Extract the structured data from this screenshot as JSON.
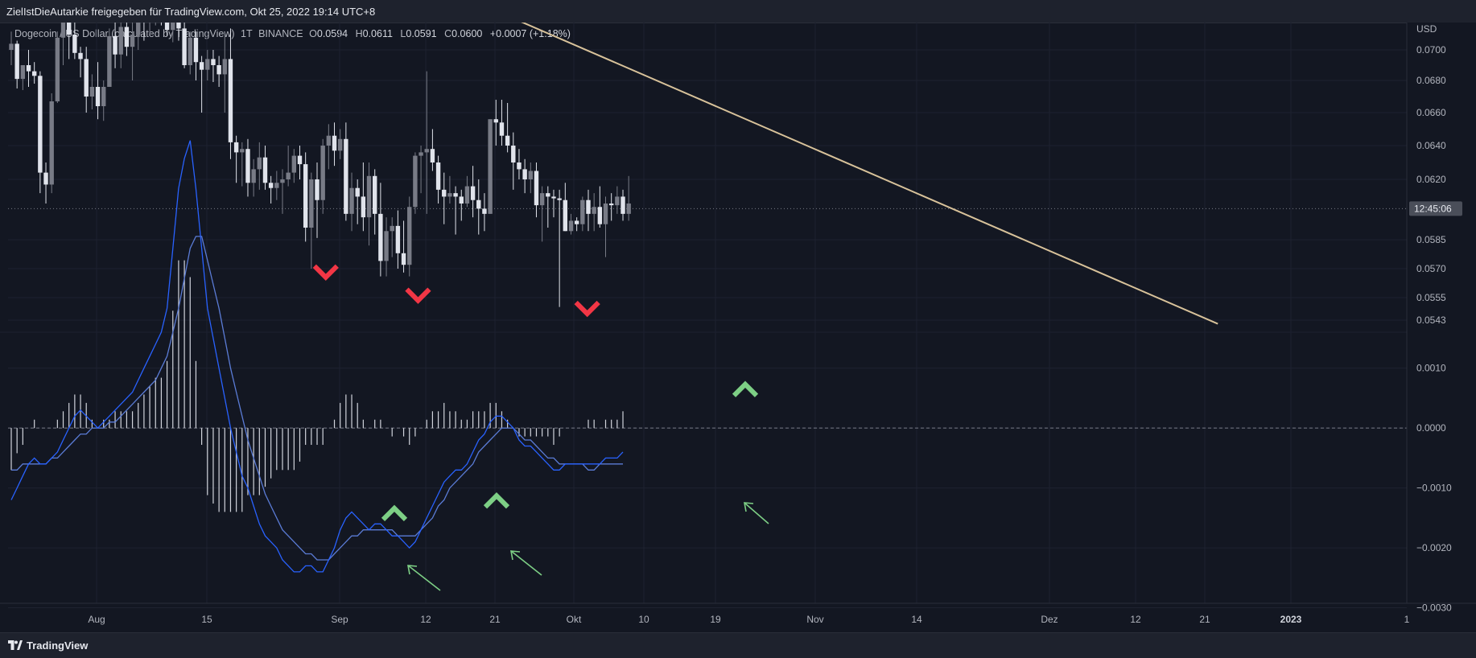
{
  "header": {
    "text": "ZielIstDieAutarkie freigegeben für TradingView.com, Okt 25, 2022 19:14 UTC+8"
  },
  "legend": {
    "symbol": "Dogecoin / US Dollar (calculated by TradingView)",
    "interval": "1T",
    "exchange": "BINANCE",
    "o": "0.0594",
    "h": "0.0611",
    "l": "0.0591",
    "c": "0.0600",
    "change": "+0.0007 (+1.18%)"
  },
  "footer": {
    "brand": "TradingView"
  },
  "colors": {
    "bg": "#131722",
    "panel": "#1e222d",
    "candle_up": "#787b86",
    "candle_down": "#e0e3eb",
    "macd": "#2962ff",
    "signal": "#5b7cd6",
    "hist": "#d1d4dc",
    "trendline": "#d8c29a",
    "sell_marker": "#f23645",
    "buy_marker": "#7dcf85",
    "arrow": "#7dcf85"
  },
  "icons": [
    "tradingview-logo-icon",
    "sell-marker-icon",
    "buy-marker-icon",
    "arrow-icon"
  ],
  "chart_data": [
    {
      "type": "candlestick",
      "title": "Dogecoin / US Dollar",
      "currency": "USD",
      "countdown": "12:45:06",
      "y_ticks": [
        "0.0700",
        "0.0680",
        "0.0660",
        "0.0640",
        "0.0620",
        "0.0585",
        "0.0570",
        "0.0555",
        "0.0543"
      ],
      "x_ticks": [
        "Aug",
        "15",
        "Sep",
        "12",
        "21",
        "Okt",
        "10",
        "19",
        "Nov",
        "14",
        "Dez",
        "12",
        "21",
        "2023",
        "1"
      ],
      "grid": true,
      "ohlc": [
        [
          0.07,
          0.0712,
          0.069,
          0.0704
        ],
        [
          0.0704,
          0.0706,
          0.0675,
          0.0681
        ],
        [
          0.0681,
          0.069,
          0.0674,
          0.069
        ],
        [
          0.069,
          0.07,
          0.0676,
          0.0686
        ],
        [
          0.0686,
          0.0692,
          0.0678,
          0.0683
        ],
        [
          0.0683,
          0.0686,
          0.0612,
          0.0624
        ],
        [
          0.0624,
          0.063,
          0.0606,
          0.0617
        ],
        [
          0.0617,
          0.0672,
          0.0612,
          0.0667
        ],
        [
          0.0667,
          0.0712,
          0.0666,
          0.0708
        ],
        [
          0.0708,
          0.0728,
          0.069,
          0.0718
        ],
        [
          0.0718,
          0.0728,
          0.0694,
          0.071
        ],
        [
          0.071,
          0.0724,
          0.0694,
          0.0698
        ],
        [
          0.0698,
          0.0702,
          0.0682,
          0.0694
        ],
        [
          0.0694,
          0.0702,
          0.066,
          0.067
        ],
        [
          0.067,
          0.0684,
          0.0662,
          0.0676
        ],
        [
          0.0676,
          0.0692,
          0.0656,
          0.0664
        ],
        [
          0.0664,
          0.068,
          0.0655,
          0.0676
        ],
        [
          0.0676,
          0.0714,
          0.0676,
          0.0709
        ],
        [
          0.0709,
          0.0718,
          0.0688,
          0.0697
        ],
        [
          0.0697,
          0.0722,
          0.0688,
          0.0715
        ],
        [
          0.0715,
          0.0728,
          0.0696,
          0.0702
        ],
        [
          0.0702,
          0.0718,
          0.068,
          0.071
        ],
        [
          0.071,
          0.0728,
          0.07,
          0.072
        ],
        [
          0.072,
          0.0728,
          0.0706,
          0.0718
        ],
        [
          0.0718,
          0.0732,
          0.071,
          0.0726
        ],
        [
          0.0726,
          0.0734,
          0.0716,
          0.073
        ],
        [
          0.073,
          0.0735,
          0.0716,
          0.0722
        ],
        [
          0.0722,
          0.073,
          0.0709,
          0.0713
        ],
        [
          0.0713,
          0.0725,
          0.0705,
          0.0718
        ],
        [
          0.0718,
          0.0724,
          0.0706,
          0.0714
        ],
        [
          0.0714,
          0.073,
          0.0688,
          0.069
        ],
        [
          0.069,
          0.0712,
          0.0684,
          0.0708
        ],
        [
          0.0708,
          0.0712,
          0.068,
          0.0692
        ],
        [
          0.0692,
          0.0696,
          0.066,
          0.0687
        ],
        [
          0.0687,
          0.07,
          0.068,
          0.0694
        ],
        [
          0.0694,
          0.07,
          0.0679,
          0.069
        ],
        [
          0.069,
          0.0696,
          0.0676,
          0.0684
        ],
        [
          0.0684,
          0.0712,
          0.066,
          0.0694
        ],
        [
          0.0694,
          0.0714,
          0.0632,
          0.0642
        ],
        [
          0.0642,
          0.0646,
          0.0618,
          0.0636
        ],
        [
          0.0636,
          0.0642,
          0.0616,
          0.0638
        ],
        [
          0.0638,
          0.0644,
          0.061,
          0.0618
        ],
        [
          0.0618,
          0.0632,
          0.061,
          0.0626
        ],
        [
          0.0626,
          0.0642,
          0.0614,
          0.0633
        ],
        [
          0.0633,
          0.064,
          0.0614,
          0.0618
        ],
        [
          0.0618,
          0.0622,
          0.0606,
          0.0615
        ],
        [
          0.0615,
          0.0625,
          0.0608,
          0.0618
        ],
        [
          0.0618,
          0.0626,
          0.06,
          0.062
        ],
        [
          0.062,
          0.064,
          0.0616,
          0.0624
        ],
        [
          0.0624,
          0.0638,
          0.0618,
          0.0634
        ],
        [
          0.0634,
          0.064,
          0.062,
          0.0629
        ],
        [
          0.0629,
          0.0636,
          0.0584,
          0.0592
        ],
        [
          0.0592,
          0.0624,
          0.057,
          0.062
        ],
        [
          0.062,
          0.063,
          0.0586,
          0.0608
        ],
        [
          0.0608,
          0.0644,
          0.06,
          0.064
        ],
        [
          0.064,
          0.0653,
          0.0626,
          0.0646
        ],
        [
          0.0646,
          0.0654,
          0.0628,
          0.0637
        ],
        [
          0.0637,
          0.065,
          0.0632,
          0.0644
        ],
        [
          0.0644,
          0.0654,
          0.0596,
          0.06
        ],
        [
          0.06,
          0.0624,
          0.059,
          0.0615
        ],
        [
          0.0615,
          0.062,
          0.0594,
          0.061
        ],
        [
          0.061,
          0.063,
          0.059,
          0.0598
        ],
        [
          0.0598,
          0.063,
          0.0582,
          0.0622
        ],
        [
          0.0622,
          0.0626,
          0.0588,
          0.06
        ],
        [
          0.06,
          0.0618,
          0.0566,
          0.0574
        ],
        [
          0.0574,
          0.0598,
          0.0566,
          0.059
        ],
        [
          0.059,
          0.0598,
          0.0576,
          0.0593
        ],
        [
          0.0593,
          0.0602,
          0.057,
          0.0578
        ],
        [
          0.0578,
          0.0596,
          0.0568,
          0.0572
        ],
        [
          0.0572,
          0.061,
          0.0566,
          0.0604
        ],
        [
          0.0604,
          0.0636,
          0.06,
          0.0634
        ],
        [
          0.0634,
          0.064,
          0.0612,
          0.0636
        ],
        [
          0.0636,
          0.0686,
          0.06,
          0.0638
        ],
        [
          0.0638,
          0.065,
          0.0625,
          0.063
        ],
        [
          0.063,
          0.0634,
          0.0606,
          0.0614
        ],
        [
          0.0614,
          0.0624,
          0.0594,
          0.061
        ],
        [
          0.061,
          0.0622,
          0.0606,
          0.0612
        ],
        [
          0.0612,
          0.0616,
          0.0588,
          0.061
        ],
        [
          0.061,
          0.0614,
          0.0596,
          0.0606
        ],
        [
          0.0606,
          0.0622,
          0.0604,
          0.0616
        ],
        [
          0.0616,
          0.0628,
          0.0598,
          0.0608
        ],
        [
          0.0608,
          0.062,
          0.0588,
          0.0603
        ],
        [
          0.0603,
          0.0612,
          0.059,
          0.06
        ],
        [
          0.06,
          0.0656,
          0.06,
          0.0656
        ],
        [
          0.0656,
          0.0668,
          0.064,
          0.0654
        ],
        [
          0.0654,
          0.0668,
          0.064,
          0.0646
        ],
        [
          0.0646,
          0.0666,
          0.0636,
          0.064
        ],
        [
          0.064,
          0.0648,
          0.0614,
          0.063
        ],
        [
          0.063,
          0.0638,
          0.062,
          0.0626
        ],
        [
          0.0626,
          0.0632,
          0.0612,
          0.062
        ],
        [
          0.062,
          0.063,
          0.0612,
          0.0625
        ],
        [
          0.0625,
          0.063,
          0.0598,
          0.0605
        ],
        [
          0.0605,
          0.0616,
          0.0584,
          0.0612
        ],
        [
          0.0612,
          0.0616,
          0.0592,
          0.061
        ],
        [
          0.061,
          0.0614,
          0.0598,
          0.0609
        ],
        [
          0.0609,
          0.0614,
          0.055,
          0.0608
        ],
        [
          0.0608,
          0.0618,
          0.059,
          0.059
        ],
        [
          0.059,
          0.06,
          0.0588,
          0.0596
        ],
        [
          0.0596,
          0.0598,
          0.059,
          0.0594
        ],
        [
          0.0594,
          0.061,
          0.059,
          0.0608
        ],
        [
          0.0608,
          0.0614,
          0.059,
          0.06
        ],
        [
          0.06,
          0.0612,
          0.059,
          0.0604
        ],
        [
          0.0604,
          0.0616,
          0.0592,
          0.0594
        ],
        [
          0.0594,
          0.061,
          0.0576,
          0.0606
        ],
        [
          0.0606,
          0.0612,
          0.0596,
          0.0605
        ],
        [
          0.0605,
          0.0616,
          0.06,
          0.061
        ],
        [
          0.061,
          0.0614,
          0.0596,
          0.06
        ],
        [
          0.06,
          0.0622,
          0.0596,
          0.0606
        ]
      ],
      "last_price": 0.0603,
      "trendline": {
        "from": {
          "date": "2022-09-29",
          "price": 0.0728
        },
        "to": {
          "date": "2023-01-02",
          "price": 0.0541
        }
      },
      "sell_markers": [
        {
          "date": "2022-09-08",
          "price": 0.0568
        },
        {
          "date": "2022-09-20",
          "price": 0.0556
        },
        {
          "date": "2022-10-12",
          "price": 0.0549
        }
      ],
      "buy_markers": [
        {
          "date": "2022-10-24",
          "position": "above-macd"
        }
      ]
    },
    {
      "type": "macd",
      "y_ticks": [
        "0.0010",
        "0.0000",
        "−0.0010",
        "−0.0020",
        "−0.0030"
      ],
      "ylim": [
        -0.0031,
        0.0016
      ],
      "zero_line": true,
      "macd": [
        -0.0012,
        -0.001,
        -0.0008,
        -0.0006,
        -0.0005,
        -0.0006,
        -0.0006,
        -0.0005,
        -0.0004,
        -0.0002,
        0.0,
        0.0002,
        0.0003,
        0.0002,
        0.0001,
        0.0,
        0.0001,
        0.0002,
        0.0003,
        0.0004,
        0.0005,
        0.0006,
        0.0008,
        0.001,
        0.0012,
        0.0014,
        0.0016,
        0.002,
        0.003,
        0.004,
        0.0045,
        0.0048,
        0.004,
        0.003,
        0.002,
        0.0015,
        0.001,
        0.0005,
        0.0,
        -0.0004,
        -0.0008,
        -0.001,
        -0.0013,
        -0.0016,
        -0.0018,
        -0.0019,
        -0.002,
        -0.0022,
        -0.0023,
        -0.0024,
        -0.0024,
        -0.0023,
        -0.0023,
        -0.0024,
        -0.0024,
        -0.0022,
        -0.002,
        -0.0017,
        -0.0015,
        -0.0014,
        -0.0015,
        -0.0016,
        -0.0017,
        -0.0016,
        -0.0016,
        -0.0017,
        -0.0018,
        -0.0018,
        -0.0019,
        -0.002,
        -0.0019,
        -0.0017,
        -0.0015,
        -0.0013,
        -0.0011,
        -0.0009,
        -0.0008,
        -0.0007,
        -0.0007,
        -0.0006,
        -0.0004,
        -0.0002,
        -0.0001,
        0.0001,
        0.0002,
        0.0002,
        0.0001,
        0.0,
        -0.0002,
        -0.0003,
        -0.0003,
        -0.0004,
        -0.0005,
        -0.0006,
        -0.0007,
        -0.0007,
        -0.0006,
        -0.0006,
        -0.0006,
        -0.0006,
        -0.0006,
        -0.0006,
        -0.0006,
        -0.0005,
        -0.0005,
        -0.0005,
        -0.0004
      ],
      "signal": [
        -0.0007,
        -0.0007,
        -0.0006,
        -0.0006,
        -0.0006,
        -0.0006,
        -0.0006,
        -0.0005,
        -0.0005,
        -0.0004,
        -0.0003,
        -0.0002,
        -0.0001,
        -0.0001,
        0.0,
        0.0,
        0.0,
        0.0001,
        0.0001,
        0.0002,
        0.0003,
        0.0004,
        0.0005,
        0.0006,
        0.0007,
        0.0008,
        0.001,
        0.0012,
        0.0016,
        0.002,
        0.0025,
        0.003,
        0.0032,
        0.0032,
        0.0028,
        0.0024,
        0.002,
        0.0015,
        0.001,
        0.0006,
        0.0002,
        -0.0002,
        -0.0005,
        -0.0008,
        -0.0011,
        -0.0013,
        -0.0015,
        -0.0017,
        -0.0018,
        -0.0019,
        -0.002,
        -0.0021,
        -0.0021,
        -0.0022,
        -0.0022,
        -0.0022,
        -0.0021,
        -0.002,
        -0.0019,
        -0.0018,
        -0.0018,
        -0.0017,
        -0.0017,
        -0.0017,
        -0.0017,
        -0.0017,
        -0.0017,
        -0.0018,
        -0.0018,
        -0.0018,
        -0.0018,
        -0.0017,
        -0.0016,
        -0.0015,
        -0.0013,
        -0.0012,
        -0.001,
        -0.0009,
        -0.0008,
        -0.0007,
        -0.0006,
        -0.0004,
        -0.0003,
        -0.0002,
        -0.0001,
        0.0,
        0.0,
        0.0,
        -0.0001,
        -0.0002,
        -0.0002,
        -0.0003,
        -0.0004,
        -0.0005,
        -0.0005,
        -0.0006,
        -0.0006,
        -0.0006,
        -0.0006,
        -0.0006,
        -0.0007,
        -0.0007,
        -0.0006,
        -0.0006,
        -0.0006,
        -0.0006,
        -0.0006
      ],
      "annotations": [
        "buy-marker",
        "buy-marker",
        "buy-marker",
        "arrow",
        "arrow",
        "arrow"
      ]
    }
  ]
}
